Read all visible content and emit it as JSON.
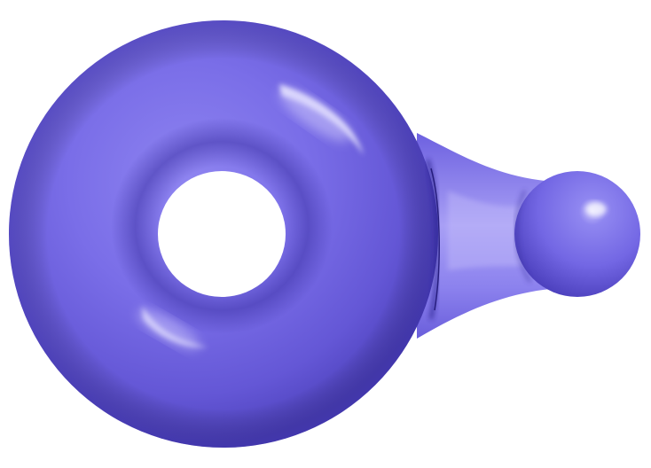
{
  "scene": {
    "subject": "torus-with-sphere-render",
    "colors": {
      "background": "#ffffff",
      "surface": "#7a6ee8",
      "surface_light": "#a89ff5",
      "surface_dark": "#4a3fb8",
      "shadow": "#3a30a0"
    }
  }
}
